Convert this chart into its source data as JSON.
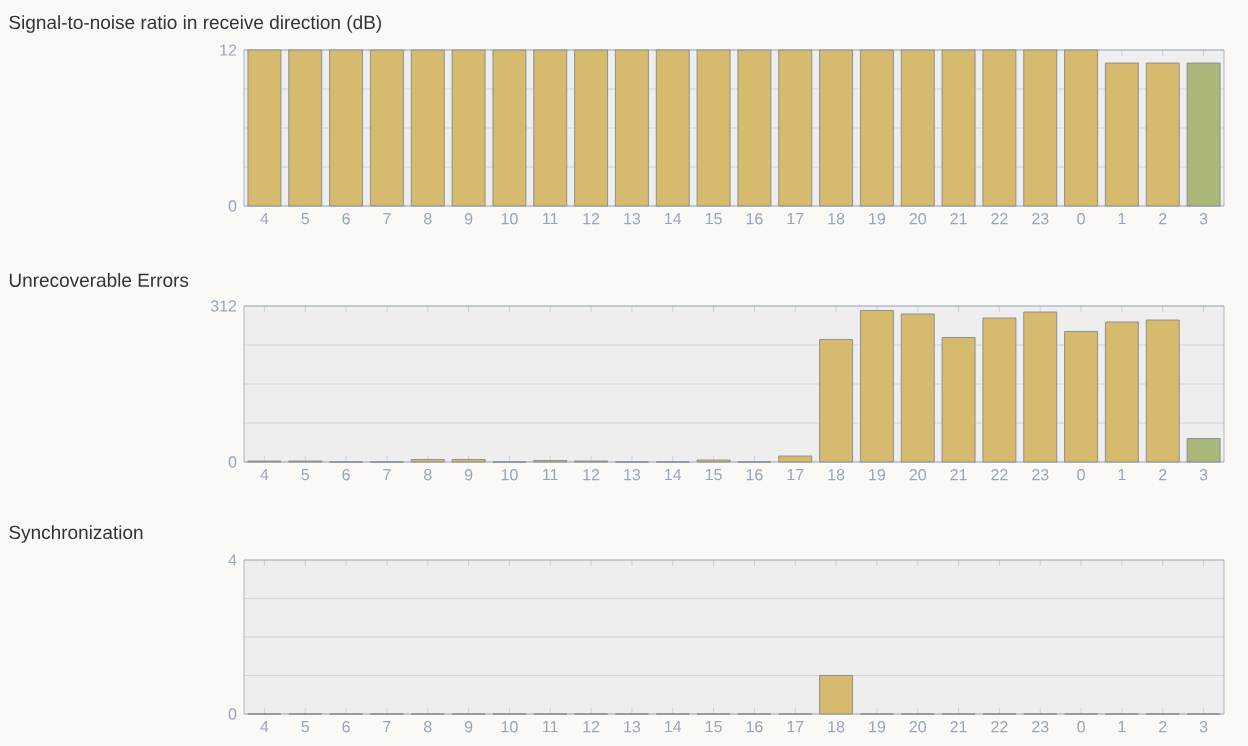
{
  "chart_data": [
    {
      "type": "bar",
      "title": "Signal-to-noise ratio in receive direction (dB)",
      "categories": [
        "4",
        "5",
        "6",
        "7",
        "8",
        "9",
        "10",
        "11",
        "12",
        "13",
        "14",
        "15",
        "16",
        "17",
        "18",
        "19",
        "20",
        "21",
        "22",
        "23",
        "0",
        "1",
        "2",
        "3"
      ],
      "values": [
        12,
        12,
        12,
        12,
        12,
        12,
        12,
        12,
        12,
        12,
        12,
        12,
        12,
        12,
        12,
        12,
        12,
        12,
        12,
        12,
        12,
        11,
        11,
        11
      ],
      "colors": [
        "#d6ba6e",
        "#d6ba6e",
        "#d6ba6e",
        "#d6ba6e",
        "#d6ba6e",
        "#d6ba6e",
        "#d6ba6e",
        "#d6ba6e",
        "#d6ba6e",
        "#d6ba6e",
        "#d6ba6e",
        "#d6ba6e",
        "#d6ba6e",
        "#d6ba6e",
        "#d6ba6e",
        "#d6ba6e",
        "#d6ba6e",
        "#d6ba6e",
        "#d6ba6e",
        "#d6ba6e",
        "#d6ba6e",
        "#d6ba6e",
        "#d6ba6e",
        "#a9b878"
      ],
      "ylim": [
        0,
        12
      ],
      "yticks": [
        0,
        {
          "value": 3,
          "label": null
        },
        {
          "value": 6,
          "label": null
        },
        {
          "value": 9,
          "label": null
        },
        12
      ],
      "grid": "y"
    },
    {
      "type": "bar",
      "title": "Unrecoverable Errors",
      "categories": [
        "4",
        "5",
        "6",
        "7",
        "8",
        "9",
        "10",
        "11",
        "12",
        "13",
        "14",
        "15",
        "16",
        "17",
        "18",
        "19",
        "20",
        "21",
        "22",
        "23",
        "0",
        "1",
        "2",
        "3"
      ],
      "values": [
        2,
        2,
        0,
        0,
        5,
        5,
        0,
        3,
        2,
        0,
        0,
        4,
        0,
        12,
        245,
        303,
        296,
        249,
        288,
        300,
        261,
        280,
        284,
        47
      ],
      "colors": [
        "#d6ba6e",
        "#d6ba6e",
        "#d6ba6e",
        "#d6ba6e",
        "#d6ba6e",
        "#d6ba6e",
        "#d6ba6e",
        "#d6ba6e",
        "#d6ba6e",
        "#d6ba6e",
        "#d6ba6e",
        "#d6ba6e",
        "#d6ba6e",
        "#d6ba6e",
        "#d6ba6e",
        "#d6ba6e",
        "#d6ba6e",
        "#d6ba6e",
        "#d6ba6e",
        "#d6ba6e",
        "#d6ba6e",
        "#d6ba6e",
        "#d6ba6e",
        "#a9b878"
      ],
      "ylim": [
        0,
        312
      ],
      "yticks": [
        0,
        {
          "value": 78,
          "label": null
        },
        {
          "value": 156,
          "label": null
        },
        {
          "value": 234,
          "label": null
        },
        312
      ],
      "grid": "y"
    },
    {
      "type": "bar",
      "title": "Synchronization",
      "categories": [
        "4",
        "5",
        "6",
        "7",
        "8",
        "9",
        "10",
        "11",
        "12",
        "13",
        "14",
        "15",
        "16",
        "17",
        "18",
        "19",
        "20",
        "21",
        "22",
        "23",
        "0",
        "1",
        "2",
        "3"
      ],
      "values": [
        0,
        0,
        0,
        0,
        0,
        0,
        0,
        0,
        0,
        0,
        0,
        0,
        0,
        0,
        1,
        0,
        0,
        0,
        0,
        0,
        0,
        0,
        0,
        0
      ],
      "colors": [
        "#d6ba6e",
        "#d6ba6e",
        "#d6ba6e",
        "#d6ba6e",
        "#d6ba6e",
        "#d6ba6e",
        "#d6ba6e",
        "#d6ba6e",
        "#d6ba6e",
        "#d6ba6e",
        "#d6ba6e",
        "#d6ba6e",
        "#d6ba6e",
        "#d6ba6e",
        "#d6ba6e",
        "#d6ba6e",
        "#d6ba6e",
        "#d6ba6e",
        "#d6ba6e",
        "#d6ba6e",
        "#d6ba6e",
        "#d6ba6e",
        "#d6ba6e",
        "#a9b878"
      ],
      "ylim": [
        0,
        4
      ],
      "yticks": [
        0,
        {
          "value": 1,
          "label": null
        },
        {
          "value": 2,
          "label": null
        },
        {
          "value": 3,
          "label": null
        },
        4
      ],
      "grid": "y"
    }
  ]
}
